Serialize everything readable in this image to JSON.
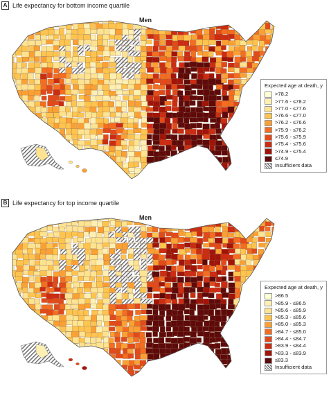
{
  "colors": [
    "#ffffd4",
    "#fef0b2",
    "#fee391",
    "#fec44f",
    "#fba034",
    "#f46d20",
    "#e34a1a",
    "#cc2c12",
    "#a11409",
    "#5f0a0a"
  ],
  "panels": [
    {
      "letter": "A",
      "title": "Life expectancy for bottom income quartile",
      "subtitle": "Men",
      "legend": {
        "title": "Expected age at death, y",
        "items": [
          ">78.2",
          ">77.6 - ≤78.2",
          ">77.0 - ≤77.6",
          ">76.6 - ≤77.0",
          ">76.2 - ≤76.6",
          ">75.9 - ≤76.2",
          ">75.6 - ≤75.9",
          ">75.4 - ≤75.6",
          ">74.9 - ≤75.4",
          "≤74.9"
        ],
        "insufficient": "Insufficient data"
      }
    },
    {
      "letter": "B",
      "title": "Life expectancy for top income quartile",
      "subtitle": "Men",
      "legend": {
        "title": "Expected age at death, y",
        "items": [
          ">86.5",
          ">85.9 - ≤86.5",
          ">85.6 - ≤85.9",
          ">85.3 - ≤85.6",
          ">85.0 - ≤85.3",
          ">84.7 - ≤85.0",
          ">84.4 - ≤84.7",
          ">83.9 - ≤84.4",
          ">83.3 - ≤83.9",
          "≤83.3"
        ],
        "insufficient": "Insufficient data"
      }
    }
  ]
}
